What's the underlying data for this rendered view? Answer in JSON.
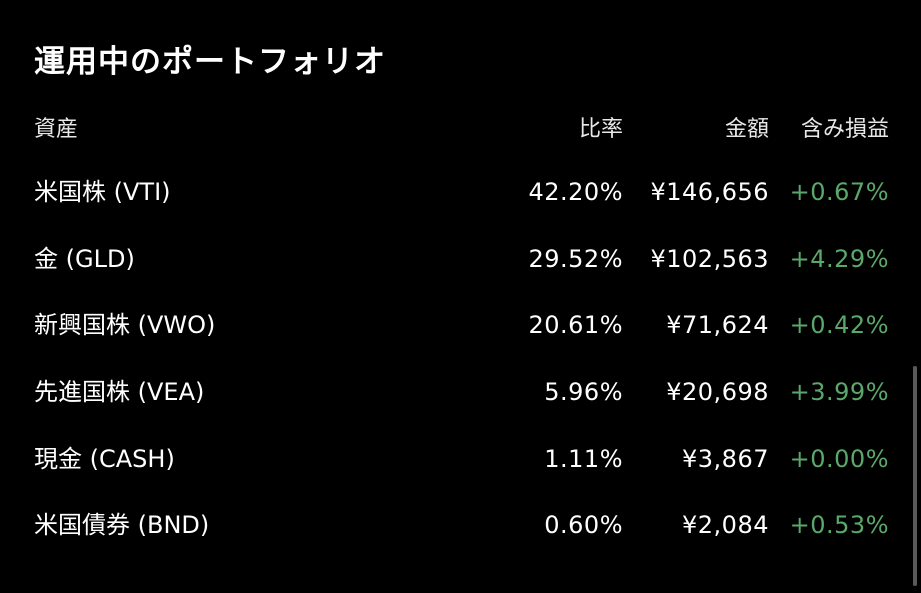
{
  "title": "運用中のポートフォリオ",
  "columns": {
    "asset": "資産",
    "ratio": "比率",
    "amount": "金額",
    "pnl": "含み損益"
  },
  "rows": [
    {
      "asset": "米国株 (VTI)",
      "ratio": "42.20%",
      "amount": "¥146,656",
      "pnl": "+0.67%"
    },
    {
      "asset": "金 (GLD)",
      "ratio": "29.52%",
      "amount": "¥102,563",
      "pnl": "+4.29%"
    },
    {
      "asset": "新興国株 (VWO)",
      "ratio": "20.61%",
      "amount": "¥71,624",
      "pnl": "+0.42%"
    },
    {
      "asset": "先進国株 (VEA)",
      "ratio": "5.96%",
      "amount": "¥20,698",
      "pnl": "+3.99%"
    },
    {
      "asset": "現金 (CASH)",
      "ratio": "1.11%",
      "amount": "¥3,867",
      "pnl": "+0.00%"
    },
    {
      "asset": "米国債券 (BND)",
      "ratio": "0.60%",
      "amount": "¥2,084",
      "pnl": "+0.53%"
    }
  ],
  "colors": {
    "background": "#000000",
    "text": "#ffffff",
    "positive": "#5aa86a"
  }
}
